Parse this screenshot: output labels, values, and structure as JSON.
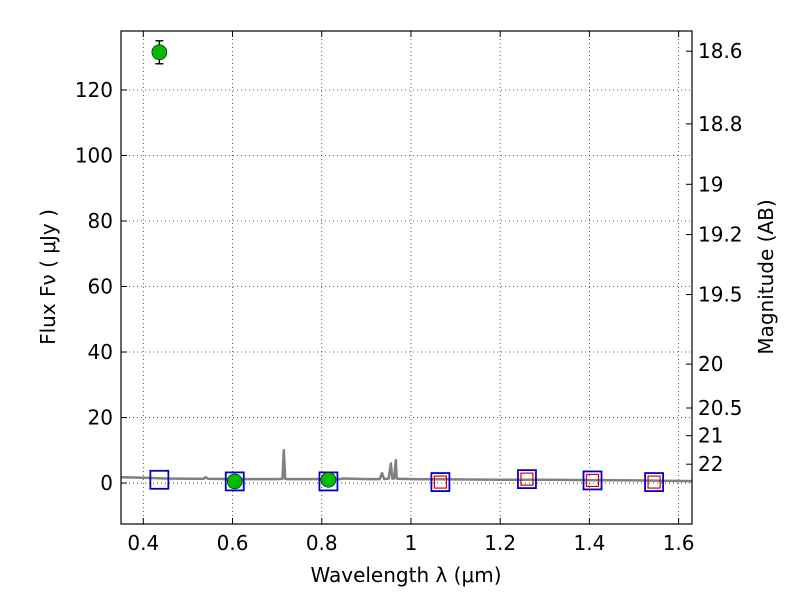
{
  "chart_data": {
    "type": "scatter",
    "title": "",
    "xlabel": "Wavelength  λ (μm)",
    "ylabel_left": "Flux  Fν  ( μJy )",
    "ylabel_right": "Magnitude (AB)",
    "xlim": [
      0.35,
      1.63
    ],
    "ylim": [
      -12.5,
      138
    ],
    "grid": true,
    "x_ticks": [
      0.4,
      0.6,
      0.8,
      1.0,
      1.2,
      1.4,
      1.6
    ],
    "x_tick_labels": [
      "0.4",
      "0.6",
      "0.8",
      "1",
      "1.2",
      "1.4",
      "1.6"
    ],
    "y_ticks": [
      0,
      20,
      40,
      60,
      80,
      100,
      120
    ],
    "y_tick_labels": [
      "0",
      "20",
      "40",
      "60",
      "80",
      "100",
      "120"
    ],
    "right_ticks": [
      {
        "label": "18.6",
        "mag": 18.6
      },
      {
        "label": "18.8",
        "mag": 18.8
      },
      {
        "label": "19",
        "mag": 19.0
      },
      {
        "label": "19.2",
        "mag": 19.2
      },
      {
        "label": "19.5",
        "mag": 19.5
      },
      {
        "label": "20",
        "mag": 20.0
      },
      {
        "label": "20.5",
        "mag": 20.5
      },
      {
        "label": "21",
        "mag": 21.0
      },
      {
        "label": "22",
        "mag": 22.0
      }
    ],
    "series": [
      {
        "kind": "spectrum",
        "color": "#808080",
        "x": [
          0.35,
          0.4,
          0.45,
          0.5,
          0.535,
          0.54,
          0.545,
          0.6,
          0.65,
          0.7,
          0.712,
          0.715,
          0.718,
          0.722,
          0.75,
          0.8,
          0.84,
          0.85,
          0.9,
          0.93,
          0.935,
          0.94,
          0.95,
          0.955,
          0.958,
          0.962,
          0.966,
          0.968,
          0.97,
          1.0,
          1.1,
          1.2,
          1.3,
          1.4,
          1.5,
          1.63
        ],
        "y": [
          1.8,
          1.6,
          1.4,
          1.3,
          1.3,
          1.8,
          1.3,
          1.2,
          1.2,
          1.2,
          1.3,
          10.0,
          1.3,
          1.2,
          1.2,
          1.2,
          1.2,
          1.4,
          1.2,
          1.2,
          3.0,
          1.2,
          1.4,
          6.0,
          1.4,
          1.4,
          7.0,
          1.4,
          1.3,
          1.2,
          1.1,
          1.0,
          1.0,
          0.9,
          0.8,
          0.6
        ]
      },
      {
        "kind": "open-squares-blue",
        "color": "#0000cc",
        "x": [
          0.436,
          0.605,
          0.815,
          1.066,
          1.26,
          1.407,
          1.545
        ],
        "y": [
          1.0,
          0.5,
          0.5,
          0.3,
          1.2,
          0.8,
          0.3
        ]
      },
      {
        "kind": "open-squares-red",
        "color": "#dd0000",
        "x": [
          1.066,
          1.26,
          1.407,
          1.545
        ],
        "y": [
          0.3,
          1.2,
          0.8,
          0.3
        ]
      },
      {
        "kind": "filled-circles-green",
        "color": "#00bb00",
        "x": [
          0.436,
          0.605,
          0.815
        ],
        "y": [
          131.5,
          0.5,
          1.0
        ],
        "yerr": [
          3.5,
          0.5,
          0.5
        ]
      }
    ]
  }
}
